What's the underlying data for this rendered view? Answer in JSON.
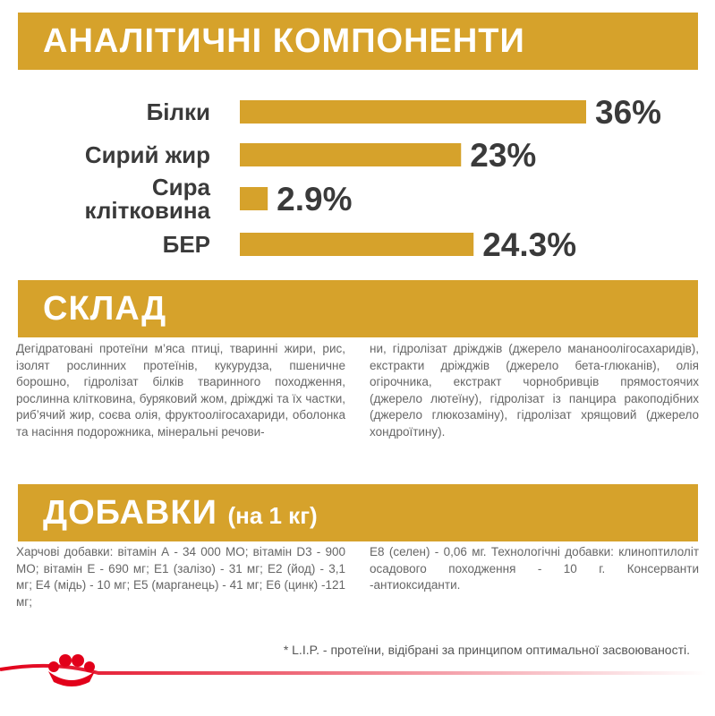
{
  "chart_data": {
    "type": "bar",
    "title": "АНАЛІТИЧНІ КОМПОНЕНТИ",
    "categories": [
      "Білки",
      "Сирий жир",
      "Сира клітковина",
      "БЕР"
    ],
    "values": [
      36,
      23,
      2.9,
      24.3
    ],
    "value_labels": [
      "36%",
      "23%",
      "2.9%",
      "24.3%"
    ],
    "color": "#d6a22b"
  },
  "composition": {
    "title": "СКЛАД",
    "columns": [
      "Дегідратовані протеїни м’яса птиці, тваринні жири, рис, ізолят рослинних протеїнів, кукурудза, пшеничне борошно, гідролізат білків тваринного походження, рослинна клітковина, буряковий жом, дріжджі та їх частки, риб’ячий жир, соєва олія, фруктоолігосахариди, оболонка та насіння подорожника, мінеральні речови-",
      "ни, гідролізат дріжджів (джерело мананоолігосахаридів), екстракти дріжджів (джерело бета-глюканів), олія огірочника, екстракт чорнобривців прямостоячих (джерело лютеїну), гідролізат із панцира ракоподібних (джерело глюкозаміну), гідролізат хрящовий (джерело хондроїтину)."
    ]
  },
  "additives": {
    "title": "ДОБАВКИ",
    "subtitle": "(на 1 кг)",
    "columns": [
      "Харчові добавки: вітамін А - 34 000 МО; вітамін D3 - 900 МО; вітамін Е - 690 мг; Е1 (залізо) - 31 мг; Е2 (йод) - 3,1 мг; Е4 (мідь) - 10 мг; Е5 (марганець) - 41 мг; Е6 (цинк) -121 мг;",
      "Е8 (селен) - 0,06 мг. Технологічні добавки: клиноптилоліт осадового походження - 10 г. Консерванти -антиоксиданти."
    ]
  },
  "footnote": "* L.I.P. - протеїни, відібрані за принципом оптимальної засвоюваності."
}
